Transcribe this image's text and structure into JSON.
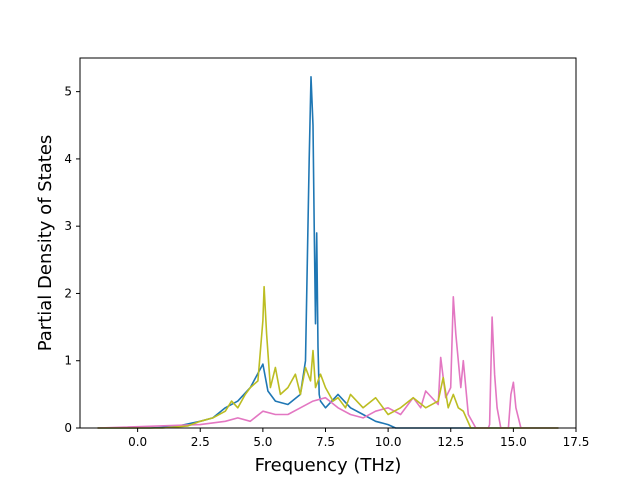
{
  "chart_data": {
    "type": "line",
    "title": "",
    "xlabel": "Frequency (THz)",
    "ylabel": "Partial Density of States",
    "xlim": [
      -2.3,
      17.5
    ],
    "ylim": [
      0,
      5.5
    ],
    "xticks": [
      "0.0",
      "2.5",
      "5.0",
      "7.5",
      "10.0",
      "12.5",
      "15.0",
      "17.5"
    ],
    "yticks": [
      "0",
      "1",
      "2",
      "3",
      "4",
      "5"
    ],
    "grid": false,
    "legend": "none",
    "series": [
      {
        "color": "#1f77b4",
        "x": [
          -1.6,
          0.5,
          1.5,
          2.5,
          3.0,
          3.5,
          4.0,
          4.5,
          5.0,
          5.2,
          5.5,
          6.0,
          6.5,
          6.7,
          6.85,
          6.92,
          7.0,
          7.05,
          7.1,
          7.15,
          7.2,
          7.25,
          7.3,
          7.5,
          8.0,
          8.5,
          9.0,
          9.5,
          10.0,
          10.3,
          16.8
        ],
        "y": [
          0,
          0,
          0.02,
          0.1,
          0.15,
          0.3,
          0.4,
          0.6,
          0.95,
          0.55,
          0.4,
          0.35,
          0.5,
          1.0,
          4.0,
          5.22,
          4.5,
          3.0,
          1.55,
          2.9,
          1.2,
          0.5,
          0.4,
          0.3,
          0.5,
          0.3,
          0.2,
          0.1,
          0.05,
          0,
          0
        ]
      },
      {
        "color": "#e377c2",
        "x": [
          -1.6,
          2.5,
          3.5,
          4.0,
          4.5,
          5.0,
          5.5,
          6.0,
          6.5,
          7.0,
          7.5,
          8.0,
          8.5,
          9.0,
          9.5,
          10.0,
          10.5,
          11.0,
          11.3,
          11.5,
          12.0,
          12.1,
          12.3,
          12.5,
          12.6,
          12.7,
          12.9,
          13.0,
          13.2,
          13.5,
          14.0,
          14.05,
          14.15,
          14.25,
          14.35,
          14.5,
          14.8,
          14.9,
          15.0,
          15.1,
          15.3,
          16.8
        ],
        "y": [
          0,
          0.05,
          0.1,
          0.15,
          0.1,
          0.25,
          0.2,
          0.2,
          0.3,
          0.4,
          0.45,
          0.3,
          0.2,
          0.15,
          0.25,
          0.3,
          0.2,
          0.45,
          0.3,
          0.55,
          0.35,
          1.05,
          0.45,
          0.6,
          1.95,
          1.4,
          0.6,
          1.0,
          0.2,
          0,
          0,
          0.05,
          1.65,
          0.8,
          0.3,
          0,
          0,
          0.5,
          0.68,
          0.3,
          0,
          0
        ]
      },
      {
        "color": "#bcbd22",
        "x": [
          -1.6,
          1.0,
          2.0,
          2.5,
          3.0,
          3.5,
          3.75,
          4.0,
          4.3,
          4.5,
          4.8,
          5.0,
          5.05,
          5.15,
          5.3,
          5.5,
          5.7,
          6.0,
          6.3,
          6.5,
          6.7,
          6.9,
          7.0,
          7.1,
          7.3,
          7.5,
          7.8,
          8.0,
          8.3,
          8.5,
          9.0,
          9.5,
          10.0,
          10.5,
          11.0,
          11.5,
          12.0,
          12.2,
          12.4,
          12.6,
          12.8,
          13.0,
          13.3,
          16.8
        ],
        "y": [
          0,
          0,
          0.03,
          0.1,
          0.15,
          0.25,
          0.4,
          0.3,
          0.5,
          0.6,
          0.7,
          1.6,
          2.1,
          1.4,
          0.6,
          0.9,
          0.5,
          0.6,
          0.8,
          0.5,
          0.9,
          0.7,
          1.15,
          0.6,
          0.8,
          0.6,
          0.4,
          0.45,
          0.3,
          0.5,
          0.3,
          0.45,
          0.2,
          0.3,
          0.45,
          0.3,
          0.4,
          0.75,
          0.3,
          0.5,
          0.3,
          0.25,
          0,
          0
        ]
      }
    ]
  }
}
